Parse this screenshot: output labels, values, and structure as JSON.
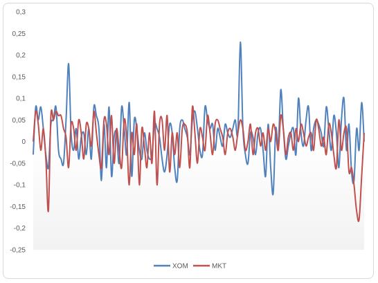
{
  "chart_data": {
    "type": "line",
    "title": "",
    "xlabel": "",
    "ylabel": "",
    "ylim": [
      -0.25,
      0.3
    ],
    "yticks": [
      0.3,
      0.25,
      0.2,
      0.15,
      0.1,
      0.05,
      0,
      -0.05,
      -0.1,
      -0.15,
      -0.2,
      -0.25
    ],
    "ytick_labels": [
      "0,3",
      "0,25",
      "0,2",
      "0,15",
      "0,1",
      "0,05",
      "0",
      "-0,05",
      "-0,1",
      "-0,15",
      "-0,2",
      "-0,25"
    ],
    "grid": false,
    "legend_position": "bottom",
    "series": [
      {
        "name": "XOM",
        "color": "#4f81bd",
        "values": [
          -0.03,
          0.08,
          0.05,
          0.08,
          0.03,
          -0.03,
          -0.06,
          0.04,
          0.05,
          0.08,
          -0.02,
          -0.04,
          -0.05,
          0.05,
          0.18,
          0.02,
          -0.02,
          0.03,
          -0.04,
          0.01,
          0.02,
          -0.03,
          0.03,
          -0.04,
          0.08,
          0.06,
          0.03,
          -0.09,
          0.04,
          -0.06,
          0.08,
          -0.08,
          0.01,
          0.02,
          -0.05,
          0.08,
          0.03,
          -0.03,
          0.09,
          -0.08,
          0.05,
          0.03,
          -0.02,
          -0.04,
          0.02,
          -0.02,
          -0.04,
          -0.03,
          0.04,
          0.03,
          0.01,
          -0.04,
          -0.07,
          -0.03,
          0.04,
          0.02,
          -0.06,
          -0.09,
          0.03,
          0.05,
          0.03,
          0.01,
          -0.03,
          0.05,
          0.07,
          0.03,
          -0.02,
          -0.03,
          0.08,
          0.05,
          0.03,
          0.04,
          -0.02,
          0.03,
          0.01,
          -0.01,
          0.04,
          0.02,
          0.01,
          0.03,
          0.05,
          0.02,
          0.23,
          0.03,
          -0.03,
          -0.05,
          0.02,
          0.01,
          -0.03,
          0.02,
          0.03,
          -0.02,
          -0.08,
          0.04,
          -0.06,
          -0.12,
          0.03,
          -0.01,
          0.12,
          0.03,
          -0.04,
          -0.01,
          0.02,
          0.03,
          -0.03,
          0.1,
          0.02,
          -0.01,
          0.05,
          0.08,
          -0.02,
          0.03,
          0.05,
          0.04,
          0.02,
          -0.01,
          0.08,
          0.03,
          -0.02,
          0.06,
          0.02,
          -0.06,
          0.05,
          0.1,
          -0.02,
          0.04,
          -0.07,
          -0.09,
          0.03,
          -0.02,
          0.09,
          0.0
        ]
      },
      {
        "name": "MKT",
        "color": "#c0504d",
        "values": [
          0.0,
          0.07,
          0.04,
          -0.02,
          0.03,
          -0.04,
          -0.16,
          0.06,
          0.05,
          0.07,
          0.06,
          0.06,
          0.03,
          0.01,
          -0.06,
          0.04,
          0.03,
          -0.02,
          0.05,
          0.02,
          -0.04,
          0.04,
          0.03,
          -0.01,
          0.07,
          0.02,
          -0.03,
          -0.06,
          0.05,
          0.04,
          -0.03,
          0.06,
          -0.05,
          0.03,
          -0.02,
          -0.06,
          0.05,
          0.01,
          -0.1,
          0.02,
          -0.03,
          0.04,
          -0.1,
          0.03,
          -0.01,
          -0.06,
          0.02,
          -0.05,
          0.07,
          -0.1,
          0.04,
          0.05,
          -0.02,
          0.06,
          -0.07,
          0.02,
          -0.03,
          0.02,
          -0.06,
          0.03,
          0.04,
          0.02,
          -0.06,
          0.08,
          0.02,
          -0.05,
          0.03,
          0.01,
          -0.02,
          0.06,
          0.02,
          -0.03,
          0.04,
          0.05,
          0.03,
          0.01,
          -0.03,
          0.02,
          0.03,
          0.01,
          -0.02,
          0.02,
          0.05,
          0.03,
          -0.02,
          0.0,
          0.04,
          -0.03,
          0.02,
          0.03,
          -0.01,
          0.02,
          -0.02,
          0.03,
          0.0,
          0.04,
          0.02,
          -0.02,
          0.06,
          0.03,
          -0.03,
          0.01,
          0.02,
          -0.02,
          0.03,
          0.0,
          0.04,
          0.02,
          -0.01,
          0.01,
          0.02,
          -0.02,
          0.05,
          0.03,
          -0.01,
          0.01,
          -0.03,
          0.04,
          0.02,
          -0.03,
          -0.06,
          0.05,
          -0.02,
          0.02,
          0.03,
          -0.07,
          -0.06,
          -0.1,
          -0.16,
          -0.18,
          -0.08,
          0.02
        ]
      }
    ]
  }
}
